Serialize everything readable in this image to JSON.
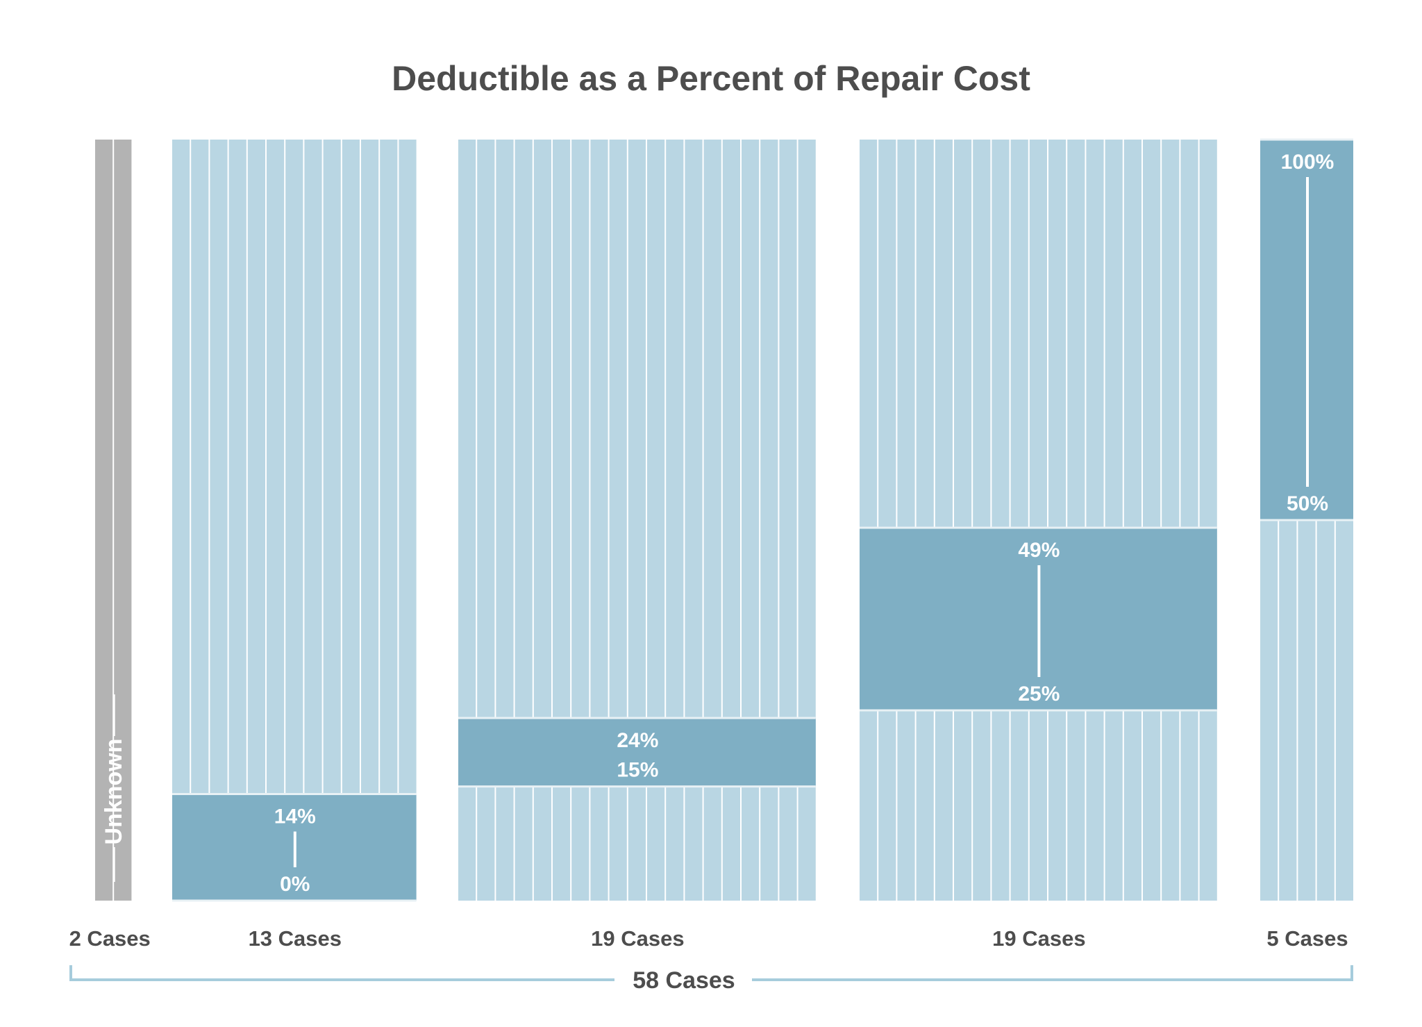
{
  "chart_data": {
    "type": "bar",
    "title": "Deductible as a Percent of Repair Cost",
    "ylim": [
      0,
      100
    ],
    "grid": false,
    "groups": [
      {
        "cases": 2,
        "label": "2 Cases",
        "unknown": true,
        "unknown_label": "Unknown"
      },
      {
        "cases": 13,
        "label": "13 Cases",
        "range": [
          0,
          14
        ],
        "low_label": "0%",
        "high_label": "14%"
      },
      {
        "cases": 19,
        "label": "19 Cases",
        "range": [
          15,
          24
        ],
        "low_label": "15%",
        "high_label": "24%"
      },
      {
        "cases": 19,
        "label": "19 Cases",
        "range": [
          25,
          49
        ],
        "low_label": "25%",
        "high_label": "49%"
      },
      {
        "cases": 5,
        "label": "5 Cases",
        "range": [
          50,
          100
        ],
        "low_label": "50%",
        "high_label": "100%"
      }
    ],
    "total_label": "58 Cases",
    "colors": {
      "bar": "#b9d6e3",
      "range_band": "#7fafc4",
      "unknown": "#b3b3b3",
      "text": "#4d4d4d",
      "bracket": "#a6ccdc"
    }
  }
}
